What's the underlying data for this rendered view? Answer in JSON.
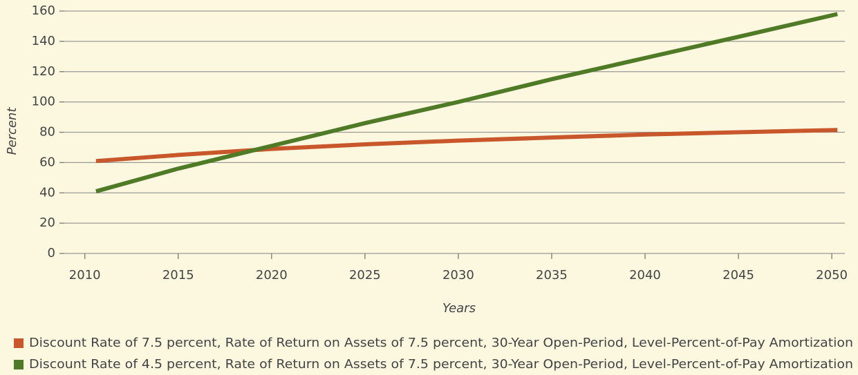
{
  "chart_data": {
    "type": "line",
    "x_label": "Years",
    "y_label": "Percent",
    "x": [
      2010.6,
      2015,
      2020,
      2025,
      2030,
      2035,
      2040,
      2045,
      2050.3
    ],
    "series": [
      {
        "name": "Discount Rate of 7.5 percent, Rate of Return on Assets of 7.5 percent, 30-Year Open-Period, Level-Percent-of-Pay Amortization",
        "color": "#c8582b",
        "values": [
          61,
          65,
          69,
          72,
          74.5,
          76.5,
          78.5,
          80,
          81.5
        ]
      },
      {
        "name": "Discount Rate of 4.5 percent, Rate of Return on Assets of 7.5 percent, 30-Year Open-Period, Level-Percent-of-Pay Amortization",
        "color": "#4f7a26",
        "values": [
          41,
          56,
          71,
          86,
          100,
          115,
          129,
          143,
          158
        ]
      }
    ],
    "xlim": [
      2008.9,
      2050.7
    ],
    "xticks": [
      2010,
      2015,
      2020,
      2025,
      2030,
      2035,
      2040,
      2045,
      2050
    ],
    "ylim": [
      0,
      160
    ],
    "yticks": [
      0,
      20,
      40,
      60,
      80,
      100,
      120,
      140,
      160
    ],
    "grid": true
  }
}
